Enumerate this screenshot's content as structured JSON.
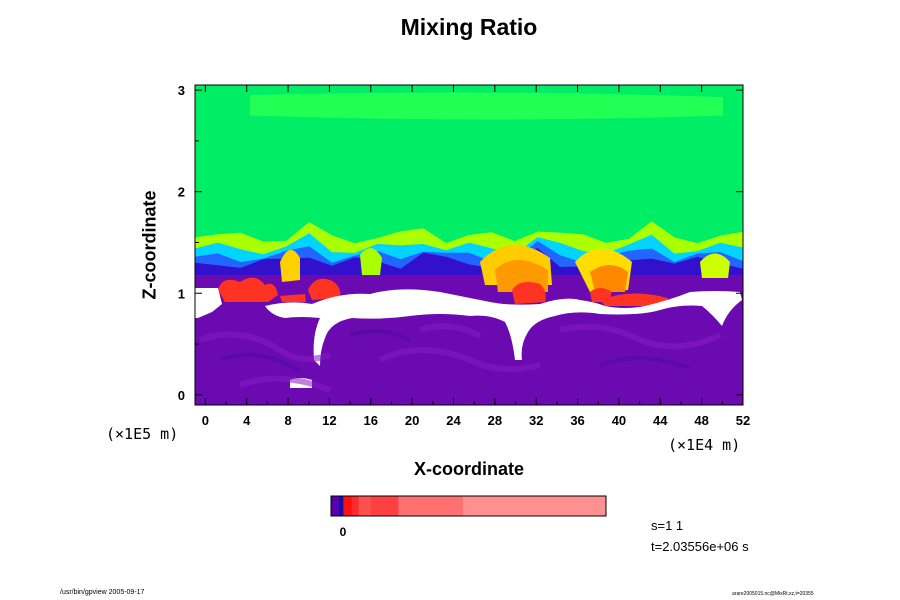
{
  "chart_data": {
    "type": "heatmap",
    "title": "Mixing Ratio",
    "xlabel": "X-coordinate",
    "ylabel": "Z-coordinate",
    "x_scale_label": "(×1E4 m)",
    "z_scale_label": "(×1E5 m)",
    "xlim": [
      -1,
      52
    ],
    "ylim": [
      -0.1,
      3.05
    ],
    "x_ticks": [
      0,
      4,
      8,
      12,
      16,
      20,
      24,
      28,
      32,
      36,
      40,
      44,
      48,
      52
    ],
    "y_ticks": [
      0,
      1,
      2,
      3
    ],
    "field_layers": [
      {
        "level": "background",
        "color": "#00ee66",
        "z_range": [
          1.55,
          3.05
        ]
      },
      {
        "level": "upper-band",
        "color": "#22ff55",
        "z_range": [
          2.75,
          2.95
        ]
      },
      {
        "level": "gradient-1",
        "color": "#aaff00",
        "z_range": [
          1.42,
          1.55
        ]
      },
      {
        "level": "gradient-2",
        "color": "#00d4ff",
        "z_range": [
          1.36,
          1.44
        ]
      },
      {
        "level": "gradient-3",
        "color": "#2266ff",
        "z_range": [
          1.3,
          1.36
        ]
      },
      {
        "level": "gradient-4",
        "color": "#3311cc",
        "z_range": [
          1.18,
          1.3
        ]
      },
      {
        "level": "lowest",
        "color": "#6a0ab0",
        "z_range": [
          -0.1,
          1.18
        ]
      }
    ],
    "colorbar": {
      "segments": [
        {
          "color": "#5a00b0",
          "fraction": 0.03
        },
        {
          "color": "#1111aa",
          "fraction": 0.015
        },
        {
          "color": "#ff1010",
          "fraction": 0.03
        },
        {
          "color": "#ff2a2a",
          "fraction": 0.025
        },
        {
          "color": "#ff5050",
          "fraction": 0.045
        },
        {
          "color": "#ff4040",
          "fraction": 0.1
        },
        {
          "color": "#ff7070",
          "fraction": 0.235
        },
        {
          "color": "#ff9090",
          "fraction": 0.52
        }
      ],
      "tick_label": "0"
    }
  },
  "annotations": {
    "s_value": "s=1 1",
    "t_value": "t=2.03556e+06 s"
  },
  "footer": {
    "left": "/usr/bin/gpview 2005-09-17",
    "right": "arare2005015.nc@MixRt,xz,t=20355"
  }
}
